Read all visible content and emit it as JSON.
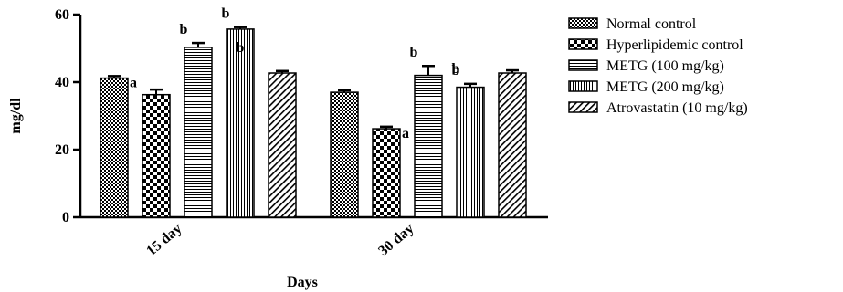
{
  "chart_data": {
    "type": "bar",
    "xlabel": "Days",
    "ylabel": "mg/dl",
    "ylim": [
      0,
      60
    ],
    "yticks": [
      0,
      20,
      40,
      60
    ],
    "categories": [
      "15 day",
      "30 day"
    ],
    "series": [
      {
        "name": "Normal control",
        "pattern": "checker-fine",
        "values": [
          41.2,
          37.0
        ],
        "errors": [
          0.6,
          0.6
        ],
        "annotations": [
          "a",
          ""
        ]
      },
      {
        "name": "Hyperlipidemic control",
        "pattern": "checker-coarse",
        "values": [
          36.3,
          26.2
        ],
        "errors": [
          1.5,
          0.6
        ],
        "annotations": [
          "",
          "a"
        ]
      },
      {
        "name": "METG (100 mg/kg)",
        "pattern": "horizontal",
        "values": [
          50.3,
          42.0
        ],
        "errors": [
          1.3,
          2.8
        ],
        "annotations": [
          "b",
          "b"
        ]
      },
      {
        "name": "METG (200 mg/kg)",
        "pattern": "vertical",
        "values": [
          55.7,
          38.5
        ],
        "errors": [
          0.6,
          1.0
        ],
        "annotations": [
          "b",
          "b"
        ]
      },
      {
        "name": "Atrovastatin (10 mg/kg)",
        "pattern": "diagonal",
        "values": [
          42.7,
          42.7
        ],
        "errors": [
          0.6,
          0.8
        ],
        "annotations": [
          "",
          ""
        ]
      }
    ],
    "extra_annotations": [
      {
        "category": 0,
        "series": 3,
        "text": "b",
        "position": "inside"
      },
      {
        "category": 1,
        "series": 3,
        "text": "b",
        "position": "above"
      }
    ],
    "legend_position": "right",
    "grid": false
  }
}
